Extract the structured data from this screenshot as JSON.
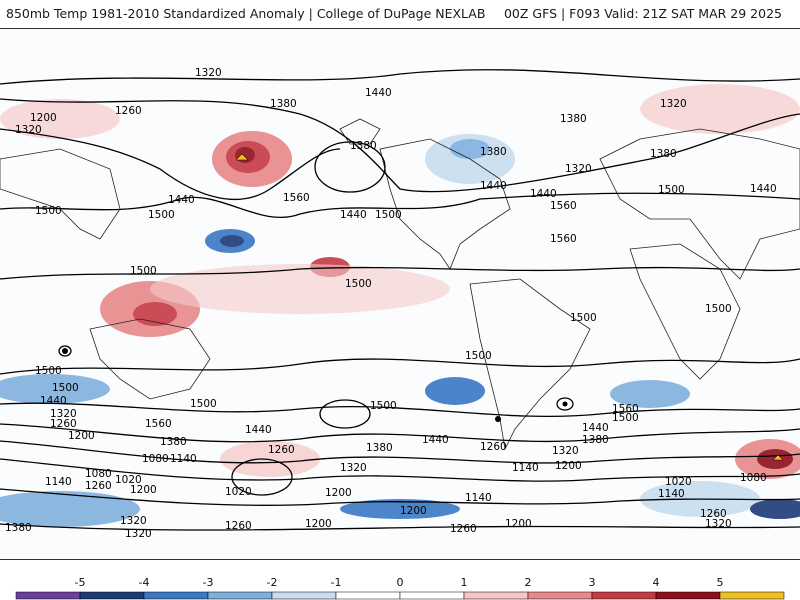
{
  "header": {
    "left": "850mb Temp 1981-2010 Standardized Anomaly | College of DuPage NEXLAB",
    "right": "00Z GFS | F093 Valid: 21Z SAT MAR 29 2025"
  },
  "contour_labels": [
    "1320",
    "1380",
    "1440",
    "1500",
    "1560",
    "1260",
    "1200",
    "1140",
    "1080",
    "1020"
  ],
  "colorbar": {
    "ticks": [
      "-5",
      "-4",
      "-3",
      "-2",
      "-1",
      "0",
      "1",
      "2",
      "3",
      "4",
      "5"
    ],
    "colors": [
      "#6a3fa0",
      "#1c3a78",
      "#3a78c4",
      "#7fb0dd",
      "#c8ddef",
      "#ffffff",
      "#f5c6c6",
      "#e8888a",
      "#c53a44",
      "#8e0e1a",
      "#f0c020"
    ]
  }
}
